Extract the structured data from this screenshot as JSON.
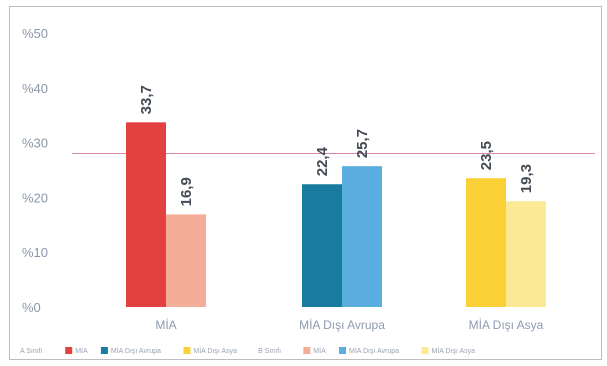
{
  "chart_data": {
    "type": "bar",
    "categories": [
      "MİA",
      "MİA Dışı Avrupa",
      "MİA Dışı Asya"
    ],
    "series": [
      {
        "values": [
          33.7,
          22.4,
          23.5
        ],
        "colors": [
          "#e2413f",
          "#177ca0",
          "#fcd137"
        ]
      },
      {
        "values": [
          16.9,
          25.7,
          19.3
        ],
        "colors": [
          "#f4ad98",
          "#59aedf",
          "#fbe996"
        ]
      }
    ],
    "data_labels": [
      [
        "33,7",
        "22,4",
        "23,5"
      ],
      [
        "16,9",
        "25,7",
        "19,3"
      ]
    ],
    "y_ticks": [
      {
        "value": 0,
        "label": "%0"
      },
      {
        "value": 10,
        "label": "%10"
      },
      {
        "value": 20,
        "label": "%20"
      },
      {
        "value": 30,
        "label": "%30"
      },
      {
        "value": 40,
        "label": "%40"
      },
      {
        "value": 50,
        "label": "%50"
      }
    ],
    "ylim": [
      0,
      50
    ],
    "grid": false,
    "reference_line": {
      "value": 28
    },
    "legend_position": "bottom",
    "legend": [
      {
        "text": "A Sınıfı",
        "color": null
      },
      {
        "text": "MİA",
        "color": "#e2413f"
      },
      {
        "text": "MİA Dışı Avrupa",
        "color": "#177ca0"
      },
      {
        "text": "MİA Dışı Asya",
        "color": "#fcd137"
      },
      {
        "text": "B Sınıfı",
        "color": null
      },
      {
        "text": "MİA",
        "color": "#f4ad98"
      },
      {
        "text": "MİA Dışı Avrupa",
        "color": "#59aedf"
      },
      {
        "text": "MİA Dışı Asya",
        "color": "#fbe996"
      }
    ],
    "reference_line_color": "#d98aa8"
  }
}
